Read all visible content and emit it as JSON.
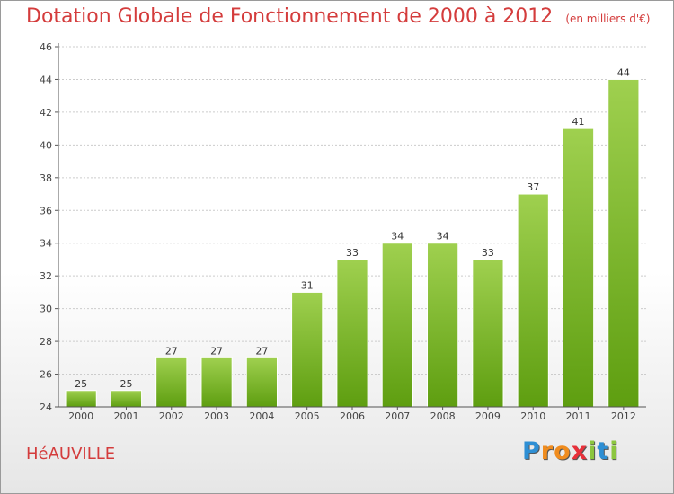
{
  "header": {
    "title": "Dotation Globale de Fonctionnement de 2000 à 2012",
    "subtitle": "(en milliers d'€)"
  },
  "footer": {
    "town": "HéAUVILLE",
    "logo_letters": [
      "P",
      "r",
      "o",
      "x",
      "i",
      "t",
      "i"
    ],
    "logo_colors": [
      "#2e8fd4",
      "#f08c1e",
      "#f08c1e",
      "#e8303a",
      "#8cc63f",
      "#2e8fd4",
      "#8cc63f"
    ]
  },
  "colors": {
    "bar_top": "#9fd04f",
    "bar_bottom": "#5e9e10",
    "title": "#d43c3c"
  },
  "chart_data": {
    "type": "bar",
    "categories": [
      "2000",
      "2001",
      "2002",
      "2003",
      "2004",
      "2005",
      "2006",
      "2007",
      "2008",
      "2009",
      "2010",
      "2011",
      "2012"
    ],
    "values": [
      25,
      25,
      27,
      27,
      27,
      31,
      33,
      34,
      34,
      33,
      37,
      41,
      44
    ],
    "title": "Dotation Globale de Fonctionnement de 2000 à 2012",
    "subtitle": "(en milliers d'€)",
    "ylim": [
      24,
      46
    ],
    "yticks": [
      24,
      26,
      28,
      30,
      32,
      34,
      36,
      38,
      40,
      42,
      44,
      46
    ],
    "grid": true
  }
}
